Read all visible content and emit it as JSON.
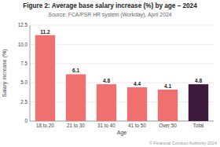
{
  "chart_data": {
    "type": "bar",
    "title": "Figure 2: Average base salary increase (%) by age – 2024",
    "subtitle": "Source: FCA/PSR HR system (Workday), April 2024",
    "annotations": [
      "© Financial Conduct Authority 2024"
    ],
    "xlabel": "Age",
    "ylabel": "Salary increase (%)",
    "categories": [
      "18 to 20",
      "21 to 30",
      "31 to 40",
      "41 to 50",
      "Over 50",
      "Total"
    ],
    "values": [
      11.2,
      6.1,
      4.8,
      4.4,
      4.1,
      4.8
    ],
    "colors": [
      "#f07070",
      "#f07070",
      "#f07070",
      "#f07070",
      "#f07070",
      "#3d1a3d"
    ],
    "ylim": [
      0,
      12.5
    ],
    "yticks": [
      0,
      2.5,
      {
        "value": 5,
        "label": "5.0"
      },
      7.5,
      {
        "value": 10,
        "label": "10.0"
      },
      12.5
    ],
    "grid": true,
    "data_labels": true
  }
}
